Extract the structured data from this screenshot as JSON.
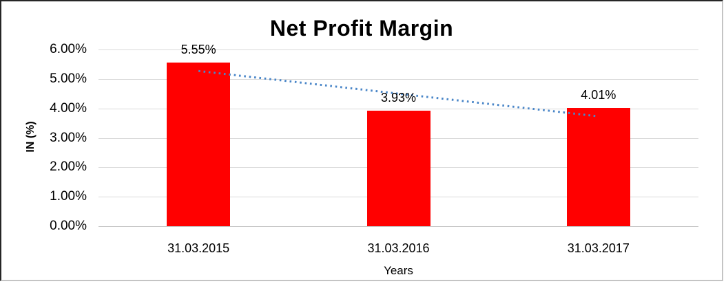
{
  "chart_data": {
    "type": "bar",
    "title": "Net Profit Margin",
    "xlabel": "Years",
    "ylabel": "IN (%)",
    "categories": [
      "31.03.2015",
      "31.03.2016",
      "31.03.2017"
    ],
    "values": [
      5.55,
      3.93,
      4.01
    ],
    "data_labels": [
      "5.55%",
      "3.93%",
      "4.01%"
    ],
    "ylim": [
      0,
      6
    ],
    "ytick_values": [
      0,
      1,
      2,
      3,
      4,
      5,
      6
    ],
    "ytick_labels": [
      "0.00%",
      "1.00%",
      "2.00%",
      "3.00%",
      "4.00%",
      "5.00%",
      "6.00%"
    ],
    "grid": "horizontal",
    "legend": "none",
    "bar_color": "#ff0000",
    "trendline": {
      "type": "linear",
      "style": "dotted",
      "color": "#4a86c8",
      "start_value": 5.27,
      "end_value": 3.73
    }
  }
}
